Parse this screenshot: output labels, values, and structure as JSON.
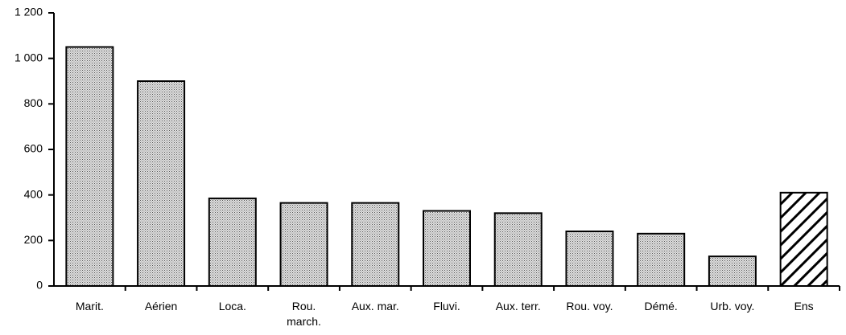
{
  "chart_data": {
    "type": "bar",
    "categories": [
      "Marit.",
      "Aérien",
      "Loca.",
      "Rou.\nmarch.",
      "Aux. mar.",
      "Fluvi.",
      "Aux. terr.",
      "Rou. voy.",
      "Démé.",
      "Urb. voy.",
      "Ens"
    ],
    "values": [
      1050,
      900,
      385,
      365,
      365,
      330,
      320,
      240,
      230,
      130,
      410
    ],
    "patterns": [
      "dotted",
      "dotted",
      "dotted",
      "dotted",
      "dotted",
      "dotted",
      "dotted",
      "dotted",
      "dotted",
      "dotted",
      "hatched"
    ],
    "color": "#bdbdbd",
    "ylim": [
      0,
      1200
    ],
    "yticks": [
      0,
      200,
      400,
      600,
      800,
      {
        "value": 1000,
        "label": "1 000"
      },
      {
        "value": 1200,
        "label": "1 200"
      }
    ],
    "grid": false
  }
}
